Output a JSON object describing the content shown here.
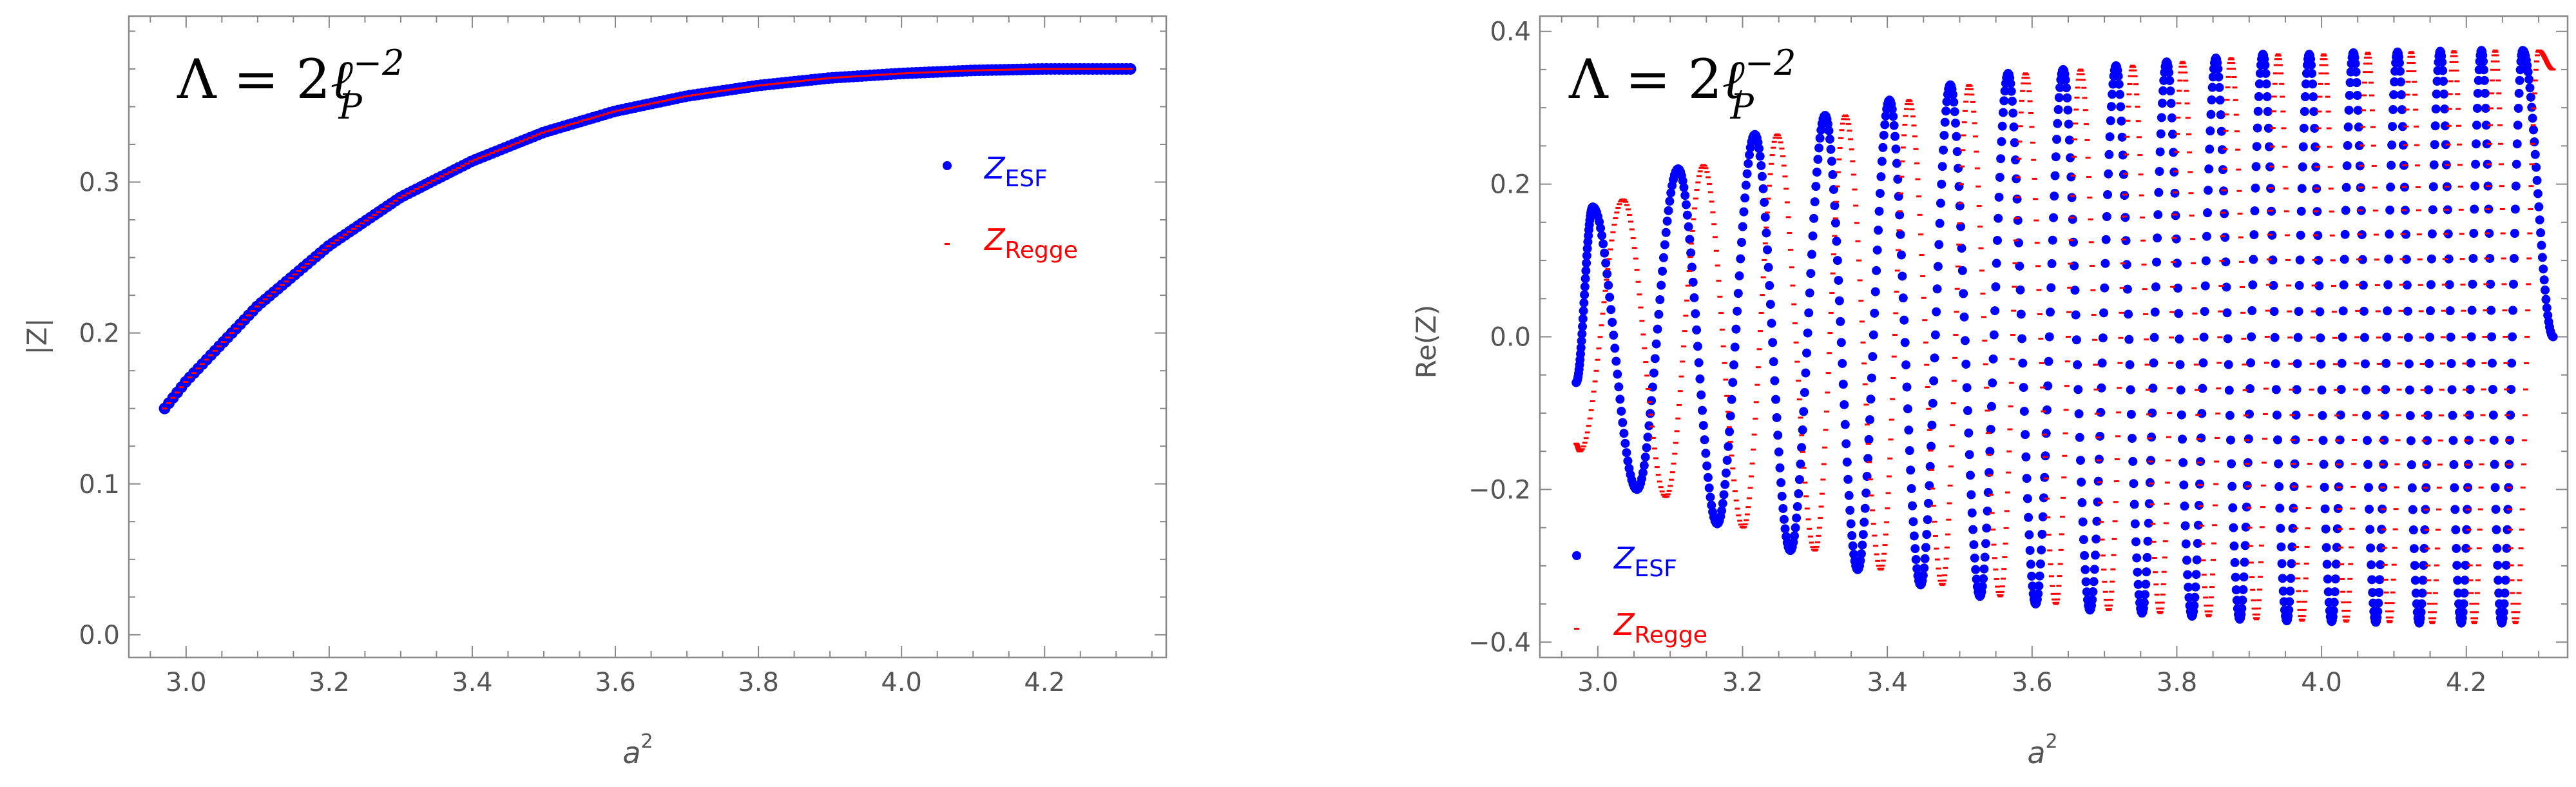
{
  "chart_data": [
    {
      "type": "scatter",
      "annotation": {
        "prefix": "Λ = 2",
        "ell": "ℓ",
        "sub": "P",
        "sup": "−2"
      },
      "xlabel": {
        "base": "a",
        "sup": "2"
      },
      "ylabel": "|Z|",
      "xlim": [
        2.92,
        4.37
      ],
      "ylim": [
        -0.015,
        0.41
      ],
      "xticks": [
        "3.0",
        "3.2",
        "3.4",
        "3.6",
        "3.8",
        "4.0",
        "4.2"
      ],
      "yticks": [
        "0.0",
        "0.1",
        "0.2",
        "0.3"
      ],
      "legend": {
        "placement": "upper-right",
        "entries": [
          {
            "name": "Z",
            "sub": "ESF",
            "color": "#0000ff"
          },
          {
            "name": "Z",
            "sub": "Regge",
            "color": "#ff0000"
          }
        ]
      },
      "series": [
        {
          "name": "Z_ESF",
          "color": "#0000ff",
          "x": [
            2.97,
            3.0,
            3.1,
            3.2,
            3.3,
            3.4,
            3.5,
            3.6,
            3.7,
            3.8,
            3.9,
            4.0,
            4.1,
            4.2,
            4.3,
            4.32
          ],
          "y": [
            0.15,
            0.168,
            0.218,
            0.258,
            0.29,
            0.314,
            0.333,
            0.347,
            0.357,
            0.364,
            0.369,
            0.372,
            0.374,
            0.375,
            0.375,
            0.375
          ]
        },
        {
          "name": "Z_Regge",
          "color": "#ff0000",
          "x": [
            2.97,
            3.0,
            3.1,
            3.2,
            3.3,
            3.4,
            3.5,
            3.6,
            3.7,
            3.8,
            3.9,
            4.0,
            4.1,
            4.2,
            4.3,
            4.32
          ],
          "y": [
            0.15,
            0.168,
            0.218,
            0.258,
            0.29,
            0.314,
            0.333,
            0.347,
            0.357,
            0.364,
            0.369,
            0.372,
            0.374,
            0.375,
            0.375,
            0.375
          ]
        }
      ]
    },
    {
      "type": "scatter",
      "annotation": {
        "prefix": "Λ = 2",
        "ell": "ℓ",
        "sub": "P",
        "sup": "−2"
      },
      "xlabel": {
        "base": "a",
        "sup": "2"
      },
      "ylabel": "Re(Z)",
      "xlim": [
        2.92,
        4.34
      ],
      "ylim": [
        -0.42,
        0.42
      ],
      "xticks": [
        "3.0",
        "3.2",
        "3.4",
        "3.6",
        "3.8",
        "4.0",
        "4.2"
      ],
      "yticks": [
        "−0.4",
        "−0.2",
        "0.0",
        "0.2",
        "0.4"
      ],
      "legend": {
        "placement": "lower-left",
        "entries": [
          {
            "name": "Z",
            "sub": "ESF",
            "color": "#0000ff"
          },
          {
            "name": "Z",
            "sub": "Regge",
            "color": "#ff0000"
          }
        ]
      },
      "series": [
        {
          "name": "Z_ESF",
          "color": "#0000ff",
          "x_start": 2.97,
          "x_end": 4.32,
          "start_value": -0.06,
          "end_value": 0.0,
          "maxima_x": [
            2.993,
            3.111,
            3.217,
            3.314,
            3.403,
            3.487,
            3.567,
            3.643,
            3.716,
            3.786,
            3.854,
            3.919,
            3.983,
            4.044,
            4.105,
            4.164,
            4.221,
            4.278
          ],
          "maxima_y": [
            0.17,
            0.22,
            0.265,
            0.29,
            0.31,
            0.33,
            0.345,
            0.35,
            0.355,
            0.36,
            0.365,
            0.37,
            0.37,
            0.372,
            0.373,
            0.374,
            0.375,
            0.375
          ],
          "minima_x": [
            3.054,
            3.165,
            3.266,
            3.359,
            3.446,
            3.528,
            3.605,
            3.68,
            3.752,
            3.821,
            3.887,
            3.952,
            4.014,
            4.075,
            4.135,
            4.193,
            4.249
          ],
          "minima_y": [
            -0.2,
            -0.245,
            -0.28,
            -0.305,
            -0.325,
            -0.34,
            -0.35,
            -0.358,
            -0.362,
            -0.366,
            -0.37,
            -0.372,
            -0.373,
            -0.374,
            -0.375,
            -0.375,
            -0.375
          ]
        },
        {
          "name": "Z_Regge",
          "color": "#ff0000",
          "x_start": 2.97,
          "x_end": 4.32,
          "start_value": -0.14,
          "end_value": 0.35,
          "maxima_x": [
            3.035,
            3.146,
            3.248,
            3.342,
            3.43,
            3.513,
            3.591,
            3.667,
            3.739,
            3.808,
            3.875,
            3.94,
            4.003,
            4.064,
            4.124,
            4.183,
            4.24,
            4.3
          ],
          "maxima_y": [
            0.18,
            0.225,
            0.265,
            0.29,
            0.31,
            0.33,
            0.345,
            0.35,
            0.355,
            0.36,
            0.365,
            0.37,
            0.37,
            0.372,
            0.373,
            0.374,
            0.375,
            0.375
          ],
          "minima_x": [
            2.975,
            3.094,
            3.201,
            3.3,
            3.391,
            3.476,
            3.556,
            3.633,
            3.706,
            3.777,
            3.844,
            3.91,
            3.973,
            4.034,
            4.094,
            4.153,
            4.211,
            4.268
          ],
          "minima_y": [
            -0.15,
            -0.21,
            -0.25,
            -0.28,
            -0.305,
            -0.325,
            -0.34,
            -0.35,
            -0.358,
            -0.362,
            -0.366,
            -0.37,
            -0.372,
            -0.373,
            -0.374,
            -0.375,
            -0.375,
            -0.375
          ]
        }
      ]
    }
  ]
}
